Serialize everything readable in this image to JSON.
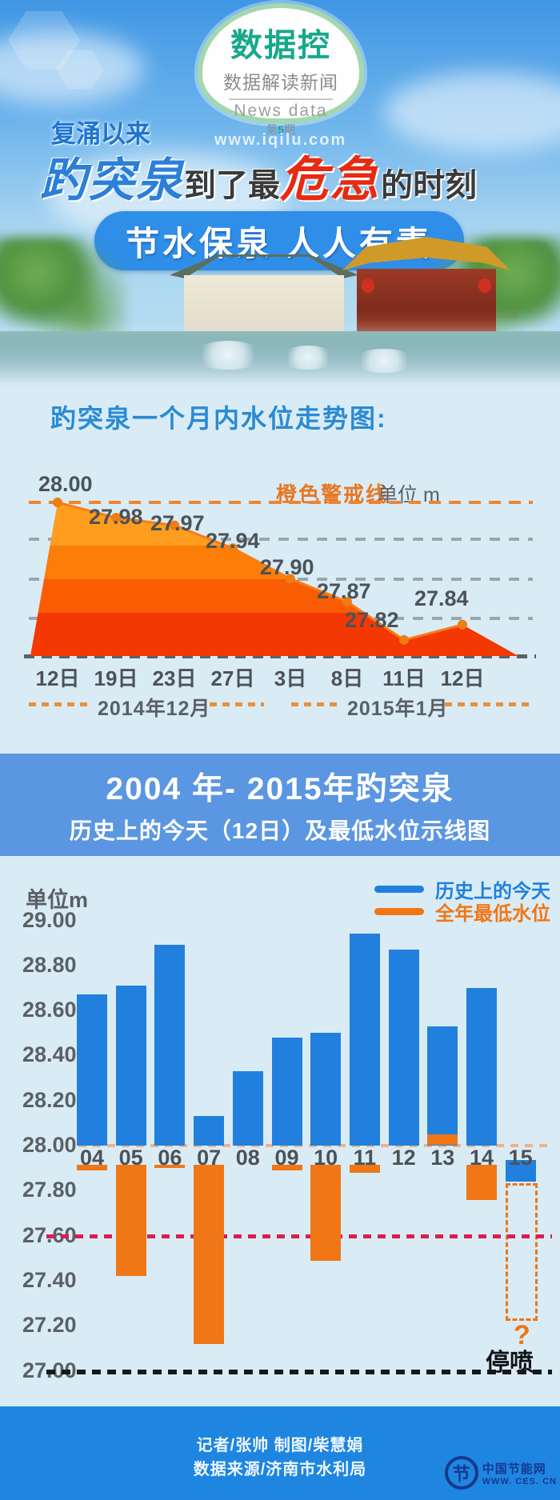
{
  "header": {
    "logo": {
      "title": "数据控",
      "subtitle": "数据解读新闻",
      "english": "News data",
      "issue_prefix": "第",
      "issue_number": "5",
      "issue_suffix": "期"
    },
    "site_watermark": "www.iqilu.com",
    "pretitle": "复涌以来",
    "title_spring": "趵突泉",
    "title_mid": "到了最",
    "title_danger": "危急",
    "title_end": "的时刻",
    "slogan_banner": "节水保泉 人人有责"
  },
  "section2": {
    "title_line1": "2004 年- 2015年趵突泉",
    "title_line2": "历史上的今天（12日）及最低水位示线图"
  },
  "chart_data": [
    {
      "type": "area",
      "title": "趵突泉一个月内水位走势图:",
      "unit_label": "单位 m",
      "warning_line": {
        "label": "橙色警戒线",
        "value": 28.0,
        "color": "#ef8430"
      },
      "x": [
        "12日",
        "19日",
        "23日",
        "27日",
        "3日",
        "8日",
        "11日",
        "12日"
      ],
      "x_months": [
        "2014年12月",
        "2015年1月"
      ],
      "values": [
        28.0,
        27.98,
        27.97,
        27.94,
        27.9,
        27.87,
        27.82,
        27.84
      ],
      "ylim": [
        27.8,
        28.02
      ],
      "area_colors": [
        "#ff9d1f",
        "#fc7d08",
        "#fa5c04",
        "#f43803"
      ],
      "point_color": "#ee7d12"
    },
    {
      "type": "bar",
      "title": "2004年-2015年趵突泉历史上的今天（12日）及最低水位示线图",
      "unit_label": "单位m",
      "categories": [
        "04",
        "05",
        "06",
        "07",
        "08",
        "09",
        "10",
        "11",
        "12",
        "13",
        "14",
        "15"
      ],
      "series": [
        {
          "name": "历史上的今天",
          "color": "#2180dd",
          "values": [
            28.67,
            28.71,
            28.89,
            28.13,
            28.33,
            28.48,
            28.5,
            28.94,
            28.87,
            28.53,
            28.7,
            27.84
          ]
        },
        {
          "name": "全年最低水位",
          "color": "#f17615",
          "values": [
            27.89,
            27.42,
            27.9,
            27.12,
            27.93,
            27.89,
            27.49,
            27.88,
            27.92,
            28.05,
            27.76,
            null
          ]
        }
      ],
      "baseline": 28.0,
      "ylim": [
        27.0,
        29.0
      ],
      "yticks": [
        29.0,
        28.8,
        28.6,
        28.4,
        28.2,
        28.0,
        27.8,
        27.6,
        27.4,
        27.2,
        27.0
      ],
      "reference_lines": [
        {
          "value": 28.0,
          "color": "#f2b088"
        },
        {
          "value": 27.6,
          "color": "#df1c4e"
        },
        {
          "value": 27.0,
          "color": "#16191c"
        }
      ],
      "annotations": {
        "unknown_mark": "?",
        "stop_label": "停喷"
      },
      "legend_position": "top-right",
      "grid": false
    }
  ],
  "footer": {
    "credits": "记者/张帅 制图/柴慧娟",
    "source": "数据来源/济南市水利局",
    "watermark_site": "中国节能网",
    "watermark_url": "WWW. CES. CN",
    "watermark_glyph": "节"
  }
}
